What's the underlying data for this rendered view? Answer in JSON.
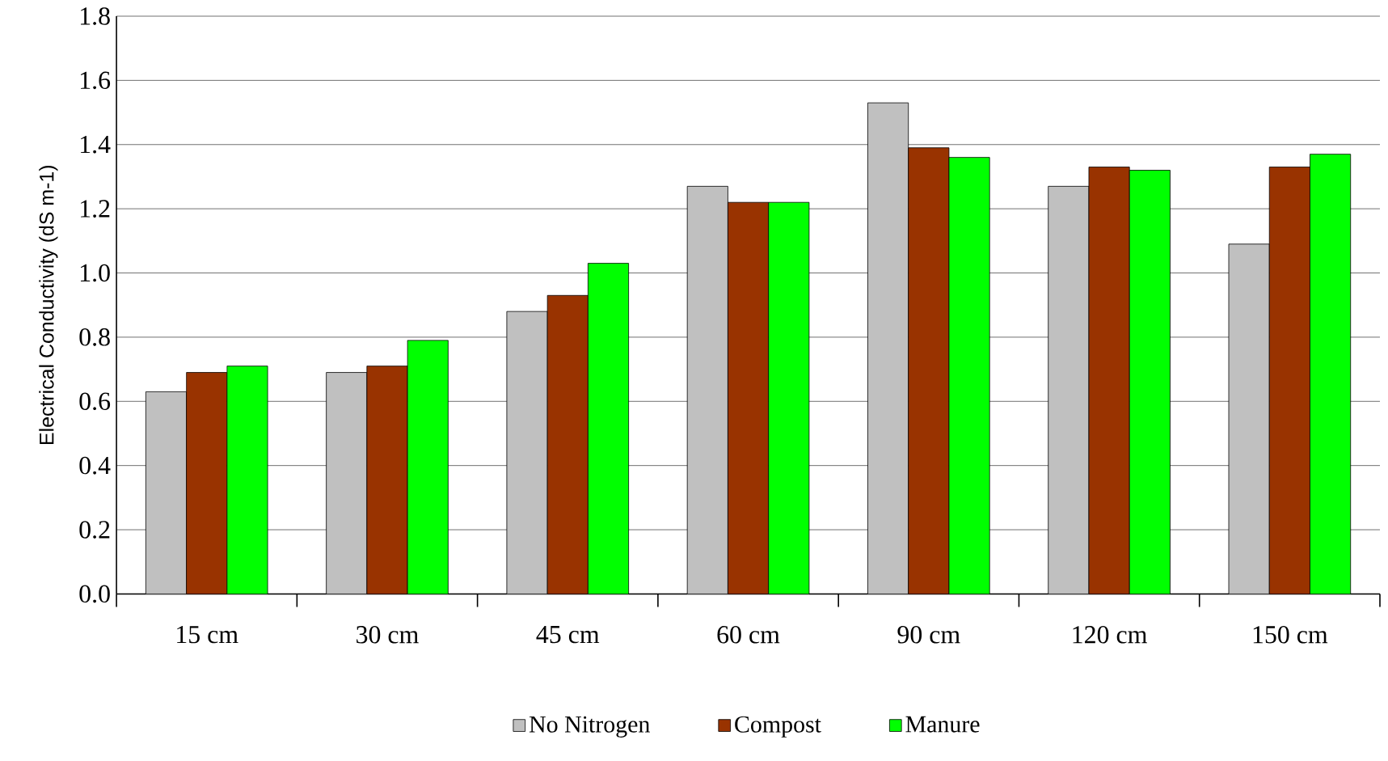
{
  "chart_data": {
    "type": "bar",
    "ylabel": "Electrical Conductivity (dS m-1)",
    "categories": [
      "15 cm",
      "30 cm",
      "45 cm",
      "60 cm",
      "90 cm",
      "120 cm",
      "150 cm"
    ],
    "series": [
      {
        "name": "No Nitrogen",
        "color": "#c0c0c0",
        "values": [
          0.63,
          0.69,
          0.88,
          1.27,
          1.53,
          1.27,
          1.09
        ]
      },
      {
        "name": "Compost",
        "color": "#993300",
        "values": [
          0.69,
          0.71,
          0.93,
          1.22,
          1.39,
          1.33,
          1.33
        ]
      },
      {
        "name": "Manure",
        "color": "#00ff00",
        "values": [
          0.71,
          0.79,
          1.03,
          1.22,
          1.36,
          1.32,
          1.37
        ]
      }
    ],
    "ylim": [
      0,
      1.8
    ],
    "yticks": [
      {
        "value": 0,
        "label": "0.0"
      },
      {
        "value": 0.2,
        "label": "0.2"
      },
      {
        "value": 0.4,
        "label": "0.4"
      },
      {
        "value": 0.6,
        "label": "0.6"
      },
      {
        "value": 0.8,
        "label": "0.8"
      },
      {
        "value": 1.0,
        "label": "1.0"
      },
      {
        "value": 1.2,
        "label": "1.2"
      },
      {
        "value": 1.4,
        "label": "1.4"
      },
      {
        "value": 1.6,
        "label": "1.6"
      },
      {
        "value": 1.8,
        "label": "1.8"
      }
    ],
    "grid": "y",
    "legend": "bottom"
  }
}
